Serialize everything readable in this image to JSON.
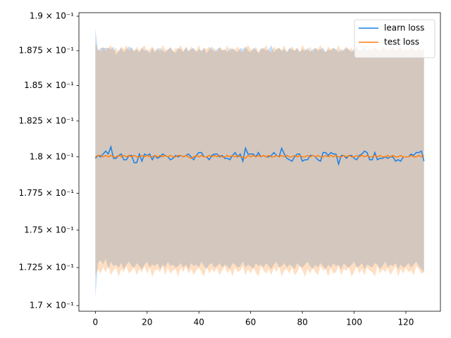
{
  "chart_data": {
    "type": "line",
    "log_y": true,
    "legend_loc": "upper right",
    "x": [
      0,
      1,
      2,
      3,
      4,
      5,
      6,
      7,
      8,
      9,
      10,
      11,
      12,
      13,
      14,
      15,
      16,
      17,
      18,
      19,
      20,
      21,
      22,
      23,
      24,
      25,
      26,
      27,
      28,
      29,
      30,
      31,
      32,
      33,
      34,
      35,
      36,
      37,
      38,
      39,
      40,
      41,
      42,
      43,
      44,
      45,
      46,
      47,
      48,
      49,
      50,
      51,
      52,
      53,
      54,
      55,
      56,
      57,
      58,
      59,
      60,
      61,
      62,
      63,
      64,
      65,
      66,
      67,
      68,
      69,
      70,
      71,
      72,
      73,
      74,
      75,
      76,
      77,
      78,
      79,
      80,
      81,
      82,
      83,
      84,
      85,
      86,
      87,
      88,
      89,
      90,
      91,
      92,
      93,
      94,
      95,
      96,
      97,
      98,
      99,
      100,
      101,
      102,
      103,
      104,
      105,
      106,
      107,
      108,
      109,
      110,
      111,
      112,
      113,
      114,
      115,
      116,
      117,
      118,
      119,
      120,
      121,
      122,
      123,
      124,
      125,
      126,
      127
    ],
    "xlim": [
      -6.35,
      133.35
    ],
    "xticks": [
      0,
      20,
      40,
      60,
      80,
      100,
      120
    ],
    "ylim": [
      0.16963,
      0.19026
    ],
    "yticks": [
      {
        "value": 0.17,
        "label": "1.7 × 10⁻¹"
      },
      {
        "value": 0.1725,
        "label": "1.725 × 10⁻¹"
      },
      {
        "value": 0.175,
        "label": "1.75 × 10⁻¹"
      },
      {
        "value": 0.1775,
        "label": "1.775 × 10⁻¹"
      },
      {
        "value": 0.18,
        "label": "1.8 × 10⁻¹"
      },
      {
        "value": 0.1825,
        "label": "1.825 × 10⁻¹"
      },
      {
        "value": 0.185,
        "label": "1.85 × 10⁻¹"
      },
      {
        "value": 0.1875,
        "label": "1.875 × 10⁻¹"
      },
      {
        "value": 0.19,
        "label": "1.9 × 10⁻¹"
      }
    ],
    "series": [
      {
        "name": "learn loss",
        "color": "#1a80e6",
        "values": [
          0.1799,
          0.1801,
          0.18,
          0.1802,
          0.1804,
          0.1802,
          0.1807,
          0.1799,
          0.1799,
          0.1801,
          0.1802,
          0.1798,
          0.1798,
          0.1801,
          0.1801,
          0.1796,
          0.1796,
          0.1802,
          0.1797,
          0.1802,
          0.1801,
          0.1802,
          0.1798,
          0.1801,
          0.1799,
          0.18,
          0.1802,
          0.1801,
          0.18,
          0.1798,
          0.1799,
          0.1801,
          0.18,
          0.1801,
          0.18,
          0.1801,
          0.1802,
          0.18,
          0.1798,
          0.1801,
          0.1803,
          0.1803,
          0.18,
          0.18,
          0.1798,
          0.1801,
          0.1802,
          0.1802,
          0.18,
          0.1801,
          0.1799,
          0.1799,
          0.1798,
          0.1801,
          0.1803,
          0.18,
          0.1802,
          0.1797,
          0.1806,
          0.1802,
          0.1802,
          0.1802,
          0.18,
          0.1803,
          0.18,
          0.1801,
          0.18,
          0.18,
          0.1801,
          0.1803,
          0.1801,
          0.18,
          0.1806,
          0.1802,
          0.1799,
          0.1798,
          0.1797,
          0.18,
          0.1802,
          0.1802,
          0.1797,
          0.1798,
          0.1798,
          0.1801,
          0.1801,
          0.18,
          0.1798,
          0.1797,
          0.1803,
          0.1803,
          0.1801,
          0.1803,
          0.1802,
          0.1802,
          0.1795,
          0.1801,
          0.1801,
          0.1799,
          0.1801,
          0.1801,
          0.1799,
          0.1798,
          0.1801,
          0.1802,
          0.1804,
          0.1803,
          0.1798,
          0.1798,
          0.1803,
          0.1798,
          0.1799,
          0.1799,
          0.18,
          0.1799,
          0.18,
          0.18,
          0.1797,
          0.1798,
          0.1797,
          0.18,
          0.18,
          0.18,
          0.1802,
          0.1801,
          0.1803,
          0.1803,
          0.1804,
          0.1797
        ],
        "upper": [
          0.1891,
          0.1875,
          0.1877,
          0.1877,
          0.1877,
          0.1877,
          0.1876,
          0.1878,
          0.1872,
          0.1875,
          0.1877,
          0.1874,
          0.1876,
          0.1878,
          0.1877,
          0.1875,
          0.1876,
          0.1874,
          0.1877,
          0.1875,
          0.1876,
          0.1873,
          0.1877,
          0.1874,
          0.1876,
          0.1877,
          0.1875,
          0.1874,
          0.1876,
          0.1877,
          0.1875,
          0.1873,
          0.1877,
          0.1876,
          0.1874,
          0.1878,
          0.1875,
          0.1876,
          0.1877,
          0.1874,
          0.1876,
          0.1875,
          0.1877,
          0.1873,
          0.1876,
          0.1878,
          0.1874,
          0.1876,
          0.1877,
          0.1875,
          0.1876,
          0.1874,
          0.1877,
          0.1876,
          0.1875,
          0.1874,
          0.1877,
          0.1876,
          0.1878,
          0.1875,
          0.1874,
          0.1877,
          0.1876,
          0.1873,
          0.1876,
          0.1877,
          0.1875,
          0.1876,
          0.1879,
          0.1874,
          0.1876,
          0.1877,
          0.1875,
          0.1876,
          0.1874,
          0.1877,
          0.1876,
          0.1875,
          0.1877,
          0.1874,
          0.1876,
          0.1875,
          0.1877,
          0.1874,
          0.1876,
          0.1877,
          0.1875,
          0.1876,
          0.1877,
          0.1874,
          0.1876,
          0.1875,
          0.1877,
          0.1876,
          0.1874,
          0.1876,
          0.1875,
          0.1877,
          0.1876,
          0.1874,
          0.1876,
          0.1878,
          0.1875,
          0.1876,
          0.1877,
          0.1875,
          0.1876,
          0.1874,
          0.1877,
          0.1876,
          0.1875,
          0.1877,
          0.1876,
          0.1874,
          0.1876,
          0.1877,
          0.1875,
          0.1876,
          0.1877,
          0.1874,
          0.1876,
          0.1875,
          0.1877,
          0.1876,
          0.1874,
          0.1876,
          0.1875,
          0.1877
        ],
        "lower": [
          0.1705,
          0.1728,
          0.173,
          0.1727,
          0.1731,
          0.1724,
          0.1729,
          0.1726,
          0.1727,
          0.1725,
          0.1728,
          0.1724,
          0.1727,
          0.1729,
          0.1726,
          0.1725,
          0.1728,
          0.1726,
          0.1724,
          0.1727,
          0.1729,
          0.1725,
          0.1727,
          0.1726,
          0.1728,
          0.1724,
          0.1727,
          0.1725,
          0.1729,
          0.1726,
          0.1727,
          0.1725,
          0.1726,
          0.1728,
          0.1725,
          0.1727,
          0.1724,
          0.1728,
          0.1726,
          0.1727,
          0.1725,
          0.1729,
          0.1726,
          0.1724,
          0.1727,
          0.1728,
          0.1725,
          0.1726,
          0.1728,
          0.1725,
          0.1727,
          0.1726,
          0.1724,
          0.1728,
          0.1727,
          0.1725,
          0.1726,
          0.1729,
          0.1725,
          0.1727,
          0.1726,
          0.1724,
          0.1728,
          0.1726,
          0.1727,
          0.1725,
          0.1728,
          0.1726,
          0.1724,
          0.1727,
          0.1729,
          0.1725,
          0.1726,
          0.1728,
          0.1725,
          0.1727,
          0.1726,
          0.1724,
          0.1728,
          0.1726,
          0.1725,
          0.1727,
          0.1729,
          0.1726,
          0.1724,
          0.1727,
          0.1725,
          0.1728,
          0.1726,
          0.1724,
          0.1727,
          0.1725,
          0.1728,
          0.1726,
          0.1727,
          0.1724,
          0.1728,
          0.1726,
          0.1725,
          0.1727,
          0.1729,
          0.1725,
          0.1726,
          0.1728,
          0.1724,
          0.1727,
          0.1726,
          0.1725,
          0.1728,
          0.1727,
          0.1724,
          0.1726,
          0.1729,
          0.1725,
          0.1727,
          0.1726,
          0.1728,
          0.1724,
          0.1727,
          0.1725,
          0.1726,
          0.1728,
          0.1725,
          0.1727,
          0.1729,
          0.1726,
          0.1724,
          0.1722
        ]
      },
      {
        "name": "test loss",
        "color": "#ff7f0e",
        "values": [
          0.18,
          0.1801,
          0.1801,
          0.18,
          0.1801,
          0.18,
          0.1801,
          0.18,
          0.18,
          0.1801,
          0.18,
          0.1801,
          0.18,
          0.1801,
          0.18,
          0.1801,
          0.18,
          0.18,
          0.1801,
          0.18,
          0.1801,
          0.18,
          0.18,
          0.1801,
          0.18,
          0.1801,
          0.18,
          0.1801,
          0.18,
          0.1801,
          0.18,
          0.18,
          0.1801,
          0.1801,
          0.18,
          0.1801,
          0.18,
          0.1799,
          0.18,
          0.1801,
          0.18,
          0.1801,
          0.18,
          0.18,
          0.1801,
          0.18,
          0.1801,
          0.18,
          0.1801,
          0.18,
          0.18,
          0.1801,
          0.18,
          0.1801,
          0.18,
          0.1801,
          0.18,
          0.18,
          0.1799,
          0.1801,
          0.18,
          0.1801,
          0.18,
          0.1801,
          0.18,
          0.1801,
          0.18,
          0.1801,
          0.18,
          0.18,
          0.1801,
          0.18,
          0.1801,
          0.18,
          0.1801,
          0.18,
          0.18,
          0.1801,
          0.18,
          0.1801,
          0.18,
          0.18,
          0.1801,
          0.18,
          0.1801,
          0.18,
          0.1801,
          0.18,
          0.18,
          0.1801,
          0.18,
          0.1801,
          0.18,
          0.1801,
          0.18,
          0.18,
          0.1801,
          0.18,
          0.1801,
          0.18,
          0.18,
          0.1801,
          0.18,
          0.1801,
          0.18,
          0.1801,
          0.18,
          0.18,
          0.1801,
          0.18,
          0.1801,
          0.18,
          0.18,
          0.1801,
          0.18,
          0.1801,
          0.18,
          0.18,
          0.1801,
          0.18,
          0.18,
          0.18,
          0.1801,
          0.18,
          0.18,
          0.1801,
          0.18,
          0.1801
        ],
        "upper": [
          0.1881,
          0.1876,
          0.1874,
          0.1878,
          0.1875,
          0.1877,
          0.1879,
          0.1875,
          0.1877,
          0.1874,
          0.1878,
          0.1876,
          0.1879,
          0.1875,
          0.1877,
          0.1874,
          0.1878,
          0.1875,
          0.1877,
          0.1879,
          0.1874,
          0.1876,
          0.1878,
          0.1875,
          0.1877,
          0.1874,
          0.1879,
          0.1876,
          0.1875,
          0.1878,
          0.1874,
          0.1877,
          0.1876,
          0.1879,
          0.1875,
          0.1877,
          0.1874,
          0.1878,
          0.1876,
          0.1875,
          0.1879,
          0.1874,
          0.1877,
          0.1876,
          0.1878,
          0.1875,
          0.1877,
          0.1874,
          0.1878,
          0.1876,
          0.1875,
          0.1879,
          0.1874,
          0.1877,
          0.1876,
          0.1878,
          0.1875,
          0.1874,
          0.1877,
          0.1879,
          0.1876,
          0.1875,
          0.1878,
          0.1874,
          0.1877,
          0.1876,
          0.1879,
          0.1875,
          0.1874,
          0.1878,
          0.1876,
          0.1877,
          0.1875,
          0.1879,
          0.1874,
          0.1876,
          0.1878,
          0.1875,
          0.1877,
          0.1874,
          0.1879,
          0.1876,
          0.1875,
          0.1878,
          0.1874,
          0.1877,
          0.1876,
          0.1879,
          0.1875,
          0.1874,
          0.1878,
          0.1876,
          0.1877,
          0.1875,
          0.1879,
          0.1874,
          0.1876,
          0.1878,
          0.1875,
          0.1877,
          0.1874,
          0.1879,
          0.1876,
          0.1875,
          0.1878,
          0.1874,
          0.1877,
          0.1876,
          0.1879,
          0.1875,
          0.1874,
          0.1878,
          0.1876,
          0.1877,
          0.1875,
          0.1879,
          0.1874,
          0.1876,
          0.1878,
          0.1875,
          0.1877,
          0.1874,
          0.1879,
          0.1876,
          0.1875,
          0.1878,
          0.1874,
          0.1876
        ],
        "lower": [
          0.172,
          0.1724,
          0.1721,
          0.1725,
          0.1722,
          0.1726,
          0.172,
          0.1723,
          0.1725,
          0.1719,
          0.1724,
          0.1722,
          0.1726,
          0.1721,
          0.1723,
          0.1725,
          0.172,
          0.1724,
          0.1722,
          0.1726,
          0.1721,
          0.1725,
          0.1719,
          0.1723,
          0.1724,
          0.1722,
          0.1726,
          0.172,
          0.1725,
          0.1721,
          0.1723,
          0.1724,
          0.1719,
          0.1725,
          0.1722,
          0.1726,
          0.1721,
          0.1724,
          0.172,
          0.1723,
          0.1725,
          0.1722,
          0.1719,
          0.1726,
          0.1721,
          0.1724,
          0.1722,
          0.1725,
          0.172,
          0.1723,
          0.1726,
          0.1721,
          0.1724,
          0.1719,
          0.1725,
          0.1722,
          0.1723,
          0.1726,
          0.172,
          0.1724,
          0.1721,
          0.1725,
          0.1722,
          0.1719,
          0.1726,
          0.1723,
          0.1721,
          0.1724,
          0.172,
          0.1725,
          0.1722,
          0.1726,
          0.1719,
          0.1723,
          0.1724,
          0.1721,
          0.1725,
          0.172,
          0.1722,
          0.1726,
          0.1723,
          0.1719,
          0.1724,
          0.1721,
          0.1725,
          0.1722,
          0.172,
          0.1726,
          0.1723,
          0.1724,
          0.1719,
          0.1725,
          0.1721,
          0.1722,
          0.1726,
          0.172,
          0.1724,
          0.1723,
          0.1725,
          0.1719,
          0.1722,
          0.1726,
          0.1721,
          0.1724,
          0.172,
          0.1725,
          0.1723,
          0.1722,
          0.1719,
          0.1726,
          0.1721,
          0.1724,
          0.1722,
          0.1725,
          0.172,
          0.1723,
          0.1726,
          0.1719,
          0.1724,
          0.1721,
          0.1725,
          0.1722,
          0.1723,
          0.172,
          0.1726,
          0.1724,
          0.1721,
          0.1722
        ]
      }
    ]
  }
}
